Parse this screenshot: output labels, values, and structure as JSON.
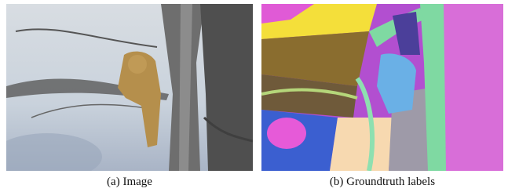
{
  "figure": {
    "panels": [
      {
        "caption": "(a) Image"
      },
      {
        "caption": "(b) Groundtruth labels"
      }
    ]
  }
}
